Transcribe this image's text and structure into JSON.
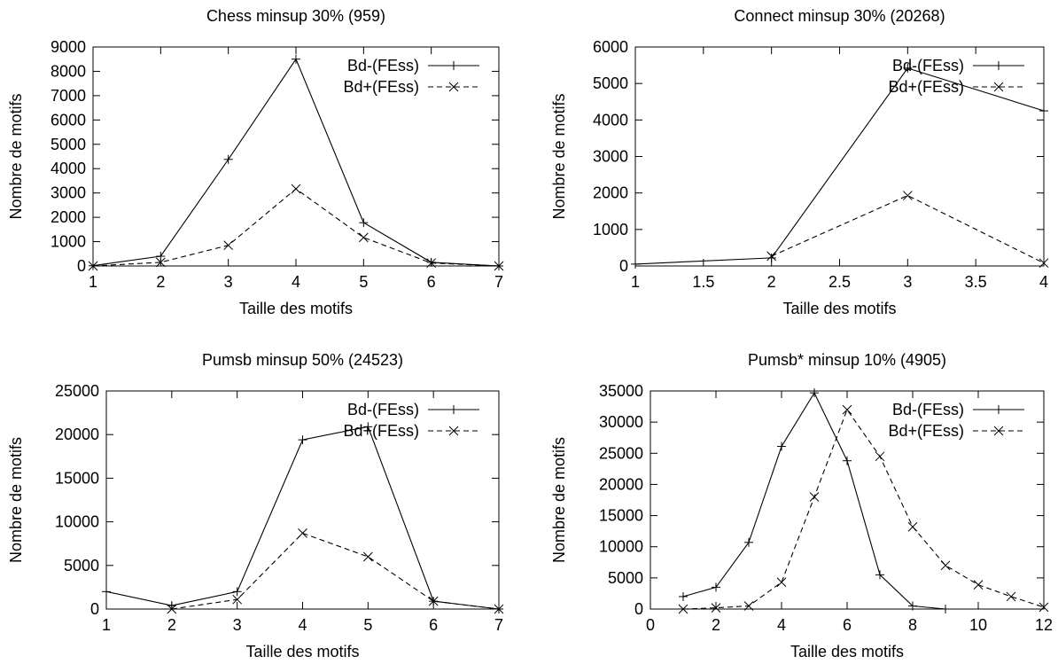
{
  "chart_data": [
    {
      "type": "line",
      "title": "Chess minsup 30% (959)",
      "xlabel": "Taille des motifs",
      "ylabel": "Nombre de motifs",
      "xlim": [
        1,
        7
      ],
      "ylim": [
        0,
        9000
      ],
      "xticks": [
        "1",
        "2",
        "3",
        "4",
        "5",
        "6",
        "7"
      ],
      "yticks": [
        "0",
        "1000",
        "2000",
        "3000",
        "4000",
        "5000",
        "6000",
        "7000",
        "8000",
        "9000"
      ],
      "legend": "top-right",
      "grid": false,
      "series": [
        {
          "name": "Bd-(FEss)",
          "style": "solid",
          "marker": "plus",
          "x": [
            1,
            2,
            3,
            4,
            5,
            6,
            7
          ],
          "y": [
            10,
            400,
            4380,
            8500,
            1780,
            150,
            0
          ]
        },
        {
          "name": "Bd+(FEss)",
          "style": "dashed",
          "marker": "x",
          "x": [
            1,
            2,
            3,
            4,
            5,
            6,
            7
          ],
          "y": [
            0,
            150,
            850,
            3170,
            1170,
            120,
            0
          ]
        }
      ]
    },
    {
      "type": "line",
      "title": "Connect minsup 30% (20268)",
      "xlabel": "Taille des motifs",
      "ylabel": "Nombre de motifs",
      "xlim": [
        1,
        4
      ],
      "ylim": [
        0,
        6000
      ],
      "xticks": [
        "1",
        "1.5",
        "2",
        "2.5",
        "3",
        "3.5",
        "4"
      ],
      "yticks": [
        "0",
        "1000",
        "2000",
        "3000",
        "4000",
        "5000",
        "6000"
      ],
      "legend": "top-right",
      "grid": false,
      "series": [
        {
          "name": "Bd-(FEss)",
          "style": "solid",
          "marker": "plus",
          "x": [
            1,
            2,
            3,
            4
          ],
          "y": [
            50,
            220,
            5420,
            4250
          ]
        },
        {
          "name": "Bd+(FEss)",
          "style": "dashed",
          "marker": "x",
          "x": [
            2,
            3,
            4
          ],
          "y": [
            270,
            1930,
            80
          ]
        }
      ]
    },
    {
      "type": "line",
      "title": "Pumsb minsup 50% (24523)",
      "xlabel": "Taille des motifs",
      "ylabel": "Nombre de motifs",
      "xlim": [
        1,
        7
      ],
      "ylim": [
        0,
        25000
      ],
      "xticks": [
        "1",
        "2",
        "3",
        "4",
        "5",
        "6",
        "7"
      ],
      "yticks": [
        "0",
        "5000",
        "10000",
        "15000",
        "20000",
        "25000"
      ],
      "legend": "top-right",
      "grid": false,
      "series": [
        {
          "name": "Bd-(FEss)",
          "style": "solid",
          "marker": "plus",
          "x": [
            1,
            2,
            3,
            4,
            5,
            6,
            7
          ],
          "y": [
            2000,
            400,
            2000,
            19400,
            20900,
            900,
            0
          ]
        },
        {
          "name": "Bd+(FEss)",
          "style": "dashed",
          "marker": "x",
          "x": [
            2,
            3,
            4,
            5,
            6,
            7
          ],
          "y": [
            0,
            1100,
            8700,
            6000,
            900,
            0
          ]
        }
      ]
    },
    {
      "type": "line",
      "title": "Pumsb* minsup 10% (4905)",
      "xlabel": "Taille des motifs",
      "ylabel": "Nombre de motifs",
      "xlim": [
        0,
        12
      ],
      "ylim": [
        0,
        35000
      ],
      "xticks": [
        "0",
        "2",
        "4",
        "6",
        "8",
        "10",
        "12"
      ],
      "yticks": [
        "0",
        "5000",
        "10000",
        "15000",
        "20000",
        "25000",
        "30000",
        "35000"
      ],
      "legend": "top-right",
      "grid": false,
      "series": [
        {
          "name": "Bd-(FEss)",
          "style": "solid",
          "marker": "plus",
          "x": [
            1,
            2,
            3,
            4,
            5,
            6,
            7,
            8,
            9
          ],
          "y": [
            2000,
            3500,
            10700,
            26100,
            34700,
            23800,
            5500,
            500,
            0
          ]
        },
        {
          "name": "Bd+(FEss)",
          "style": "dashed",
          "marker": "x",
          "x": [
            1,
            2,
            3,
            4,
            5,
            6,
            7,
            8,
            9,
            10,
            11,
            12
          ],
          "y": [
            0,
            200,
            500,
            4300,
            18000,
            32000,
            24500,
            13200,
            7000,
            3900,
            2000,
            300
          ]
        }
      ]
    }
  ]
}
